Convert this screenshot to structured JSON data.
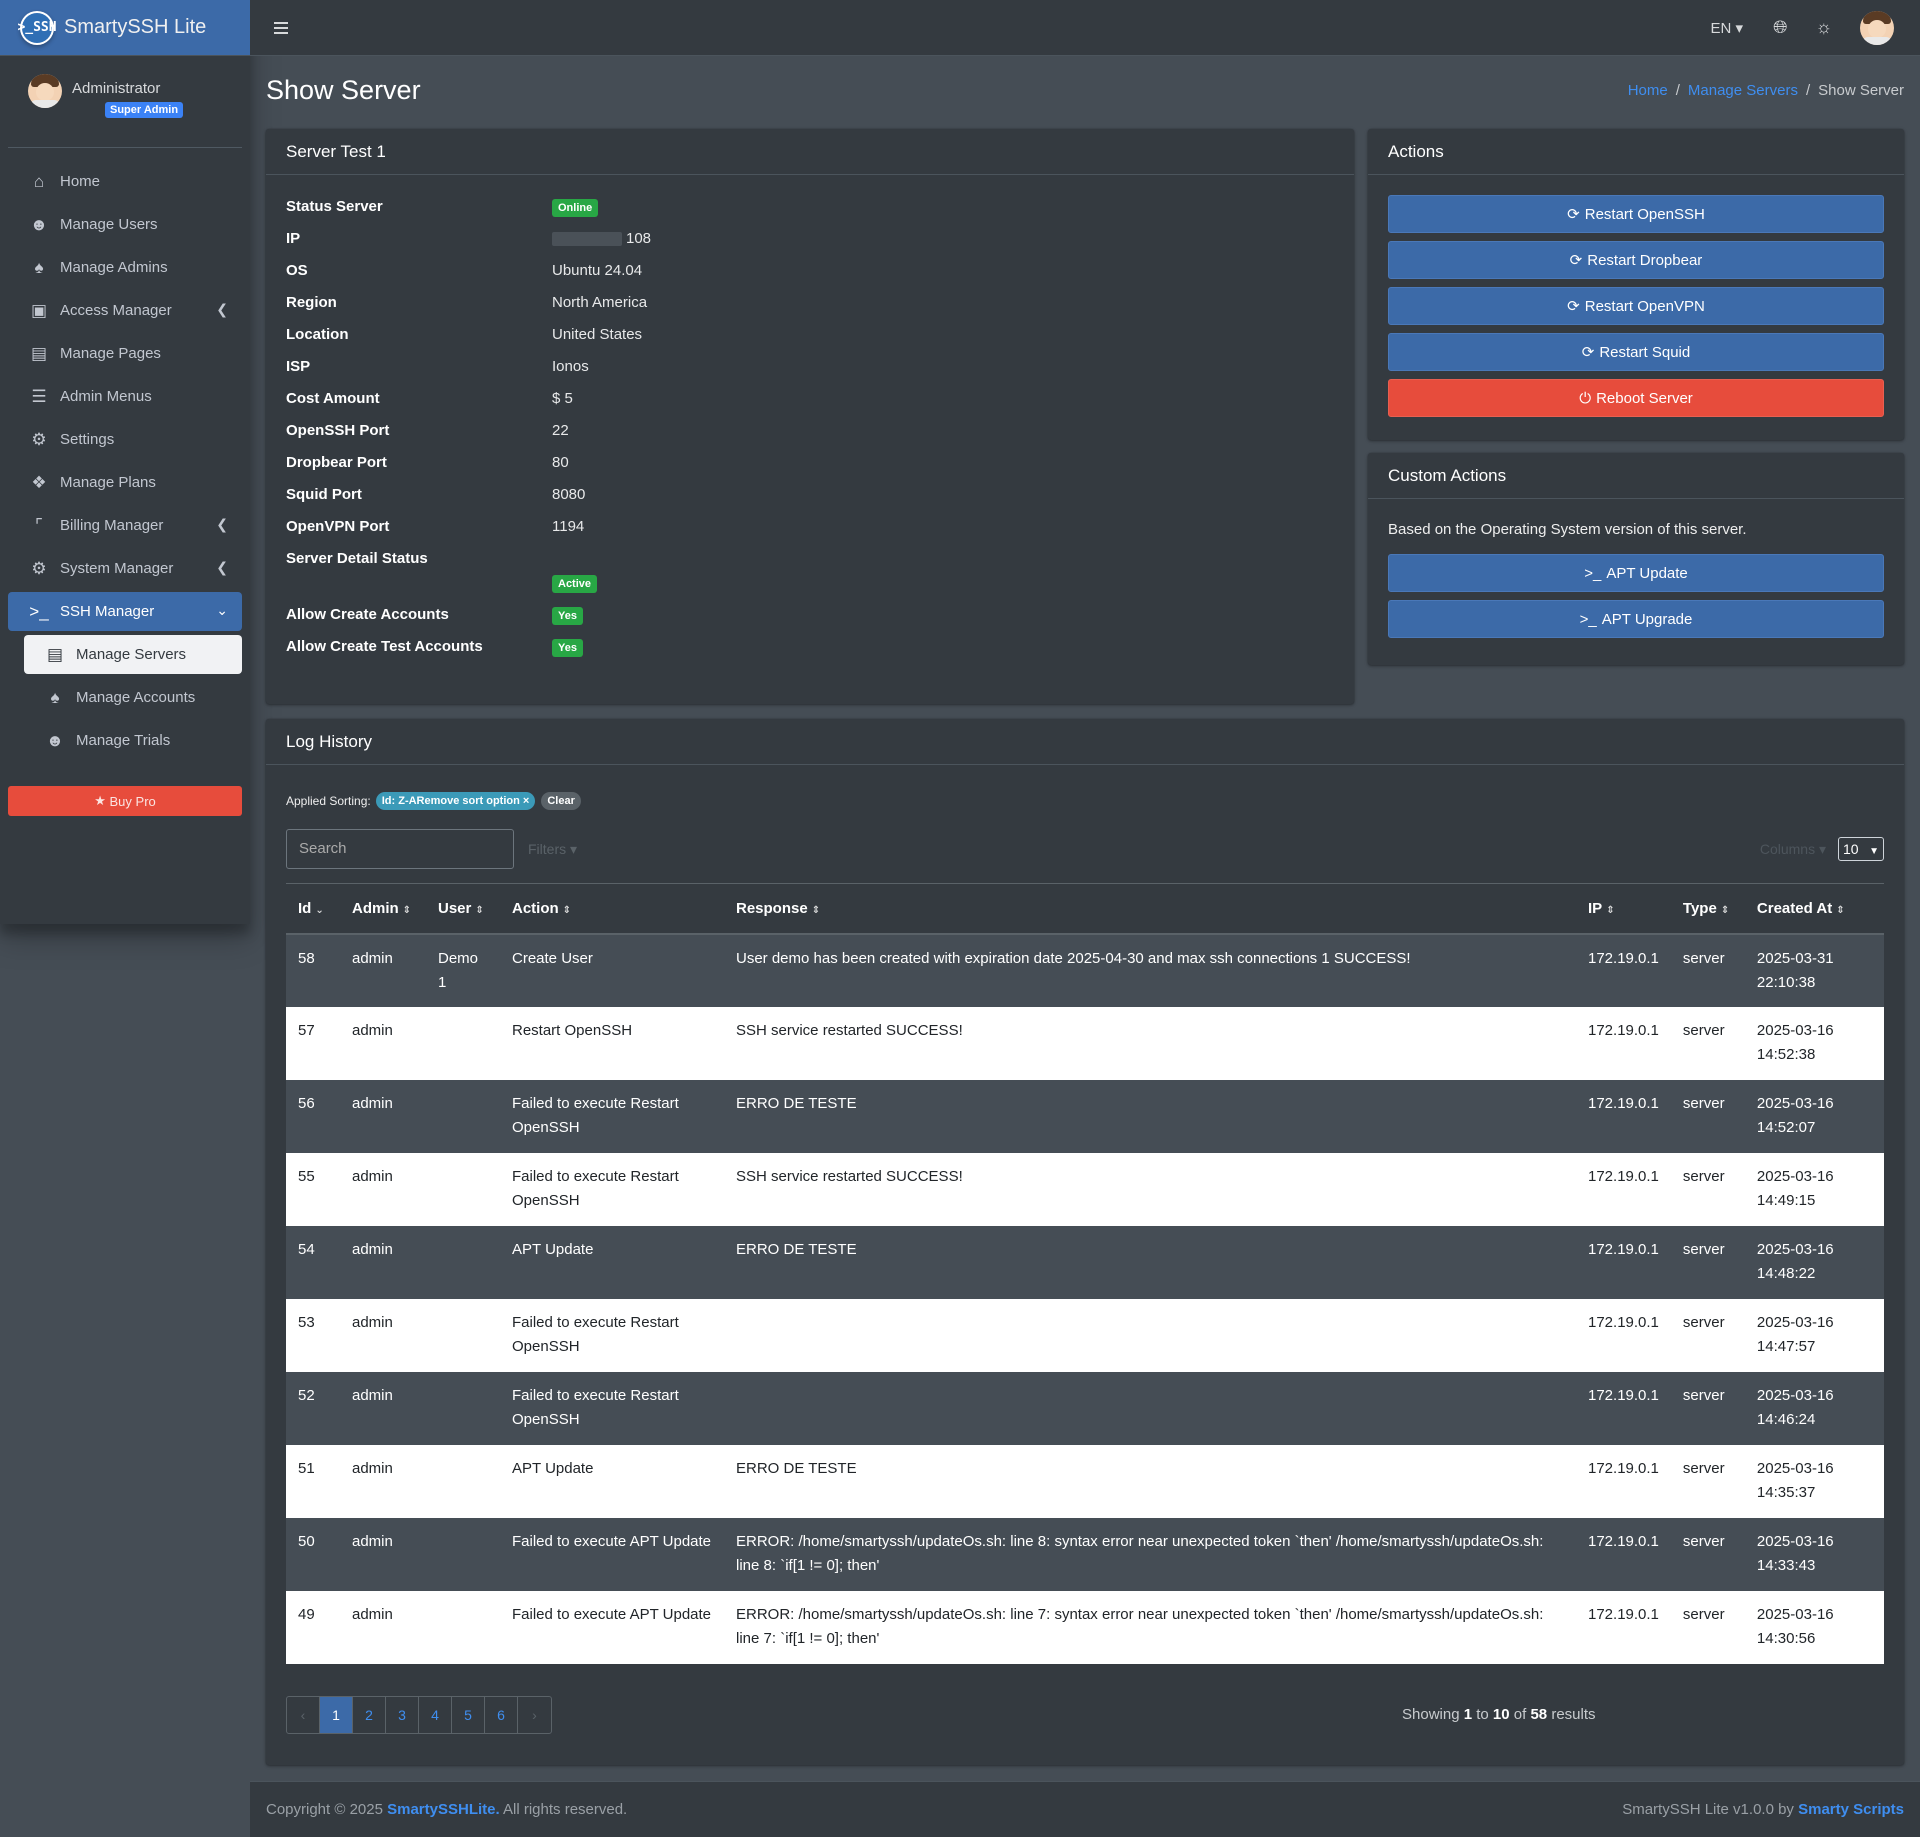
{
  "brand": {
    "name": "SmartySSH Lite",
    "logo_text": ">_SSH"
  },
  "user": {
    "name": "Administrator",
    "role": "Super Admin"
  },
  "topbar": {
    "lang": "EN ▾"
  },
  "nav": {
    "home": "Home",
    "manage_users": "Manage Users",
    "manage_admins": "Manage Admins",
    "access_manager": "Access Manager",
    "manage_pages": "Manage Pages",
    "admin_menus": "Admin Menus",
    "settings": "Settings",
    "manage_plans": "Manage Plans",
    "billing_manager": "Billing Manager",
    "system_manager": "System Manager",
    "ssh_manager": "SSH Manager",
    "manage_servers": "Manage Servers",
    "manage_accounts": "Manage Accounts",
    "manage_trials": "Manage Trials",
    "buy_pro": "Buy Pro"
  },
  "page": {
    "title": "Show Server",
    "breadcrumb": {
      "home": "Home",
      "sep": "/",
      "servers": "Manage Servers",
      "current": "Show Server"
    }
  },
  "server": {
    "title": "Server Test 1",
    "labels": {
      "status": "Status Server",
      "ip": "IP",
      "os": "OS",
      "region": "Region",
      "location": "Location",
      "isp": "ISP",
      "cost": "Cost Amount",
      "openssh": "OpenSSH Port",
      "dropbear": "Dropbear Port",
      "squid": "Squid Port",
      "openvpn": "OpenVPN Port",
      "detail_status": "Server Detail Status",
      "allow_create": "Allow Create Accounts",
      "allow_test": "Allow Create Test Accounts"
    },
    "values": {
      "status": "Online",
      "ip_suffix": "108",
      "os": "Ubuntu 24.04",
      "region": "North America",
      "location": "United States",
      "isp": "Ionos",
      "cost": "$ 5",
      "openssh": "22",
      "dropbear": "80",
      "squid": "8080",
      "openvpn": "1194",
      "detail_status": "Active",
      "allow_create": "Yes",
      "allow_test": "Yes"
    }
  },
  "actions": {
    "title": "Actions",
    "restart_openssh": "Restart OpenSSH",
    "restart_dropbear": "Restart Dropbear",
    "restart_openvpn": "Restart OpenVPN",
    "restart_squid": "Restart Squid",
    "reboot": "Reboot Server"
  },
  "custom_actions": {
    "title": "Custom Actions",
    "description": "Based on the Operating System version of this server.",
    "apt_update": "APT Update",
    "apt_upgrade": "APT Upgrade"
  },
  "log": {
    "title": "Log History",
    "applied_sorting_label": "Applied Sorting:",
    "sort_chip": "Id: Z-ARemove sort option ×",
    "clear": "Clear",
    "search_placeholder": "Search",
    "filters": "Filters ▾",
    "columns": "Columns ▾",
    "per_page": "10",
    "headers": {
      "id": "Id",
      "admin": "Admin",
      "user": "User",
      "action": "Action",
      "response": "Response",
      "ip": "IP",
      "type": "Type",
      "created": "Created At"
    },
    "rows": [
      {
        "id": "58",
        "admin": "admin",
        "user": "Demo 1",
        "action": "Create User",
        "response": "User demo has been created with expiration date 2025-04-30 and max ssh connections 1 SUCCESS!",
        "ip": "172.19.0.1",
        "type": "server",
        "created": "2025-03-31 22:10:38"
      },
      {
        "id": "57",
        "admin": "admin",
        "user": "",
        "action": "Restart OpenSSH",
        "response": "SSH service restarted SUCCESS!",
        "ip": "172.19.0.1",
        "type": "server",
        "created": "2025-03-16 14:52:38"
      },
      {
        "id": "56",
        "admin": "admin",
        "user": "",
        "action": "Failed to execute Restart OpenSSH",
        "response": "ERRO DE TESTE",
        "ip": "172.19.0.1",
        "type": "server",
        "created": "2025-03-16 14:52:07"
      },
      {
        "id": "55",
        "admin": "admin",
        "user": "",
        "action": "Failed to execute Restart OpenSSH",
        "response": "SSH service restarted SUCCESS!",
        "ip": "172.19.0.1",
        "type": "server",
        "created": "2025-03-16 14:49:15"
      },
      {
        "id": "54",
        "admin": "admin",
        "user": "",
        "action": "APT Update",
        "response": "ERRO DE TESTE",
        "ip": "172.19.0.1",
        "type": "server",
        "created": "2025-03-16 14:48:22"
      },
      {
        "id": "53",
        "admin": "admin",
        "user": "",
        "action": "Failed to execute Restart OpenSSH",
        "response": "",
        "ip": "172.19.0.1",
        "type": "server",
        "created": "2025-03-16 14:47:57"
      },
      {
        "id": "52",
        "admin": "admin",
        "user": "",
        "action": "Failed to execute Restart OpenSSH",
        "response": "",
        "ip": "172.19.0.1",
        "type": "server",
        "created": "2025-03-16 14:46:24"
      },
      {
        "id": "51",
        "admin": "admin",
        "user": "",
        "action": "APT Update",
        "response": "ERRO DE TESTE",
        "ip": "172.19.0.1",
        "type": "server",
        "created": "2025-03-16 14:35:37"
      },
      {
        "id": "50",
        "admin": "admin",
        "user": "",
        "action": "Failed to execute APT Update",
        "response": "ERROR: /home/smartyssh/updateOs.sh: line 8: syntax error near unexpected token `then' /home/smartyssh/updateOs.sh: line 8: `if[1 != 0]; then'",
        "ip": "172.19.0.1",
        "type": "server",
        "created": "2025-03-16 14:33:43"
      },
      {
        "id": "49",
        "admin": "admin",
        "user": "",
        "action": "Failed to execute APT Update",
        "response": "ERROR: /home/smartyssh/updateOs.sh: line 7: syntax error near unexpected token `then' /home/smartyssh/updateOs.sh: line 7: `if[1 != 0]; then'",
        "ip": "172.19.0.1",
        "type": "server",
        "created": "2025-03-16 14:30:56"
      }
    ],
    "pagination": {
      "prev": "‹",
      "pages": [
        "1",
        "2",
        "3",
        "4",
        "5",
        "6"
      ],
      "next": "›"
    },
    "showing": {
      "prefix": "Showing",
      "from": "1",
      "to_label": "to",
      "to": "10",
      "of_label": "of",
      "total": "58",
      "suffix": "results"
    }
  },
  "footer": {
    "copyright_prefix": "Copyright © 2025",
    "brand": "SmartySSHLite.",
    "rights": "All rights reserved.",
    "version": "SmartySSH Lite v1.0.0 by",
    "vendor": "Smarty Scripts"
  }
}
